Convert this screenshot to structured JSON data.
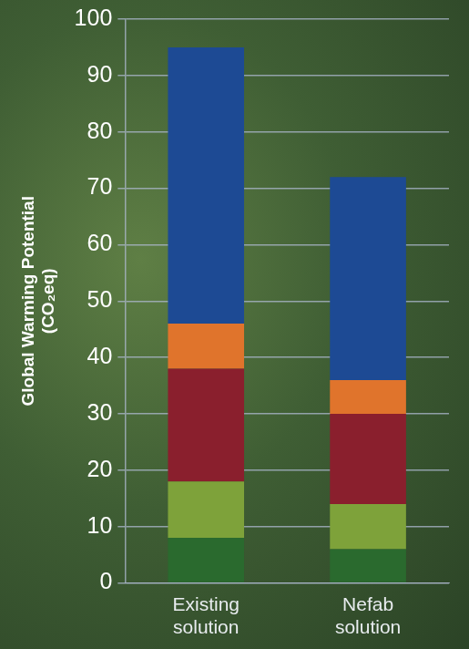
{
  "chart_data": {
    "type": "bar",
    "y_label": "Global Warming Potential (CO₂eq)",
    "categories": [
      "Existing solution",
      "Nefab solution"
    ],
    "stacked": true,
    "series": [
      {
        "color": "#2a6a2e",
        "values": [
          8,
          6
        ]
      },
      {
        "color": "#7ea23a",
        "values": [
          10,
          8
        ]
      },
      {
        "color": "#8a1f2d",
        "values": [
          20,
          16
        ]
      },
      {
        "color": "#e0742c",
        "values": [
          8,
          6
        ]
      },
      {
        "color": "#1d4a94",
        "values": [
          49,
          36
        ]
      }
    ],
    "ylim": [
      0,
      100
    ],
    "yticks": [
      0,
      10,
      20,
      30,
      40,
      50,
      60,
      70,
      80,
      90,
      100
    ],
    "grid": true,
    "tick_labels": true
  }
}
